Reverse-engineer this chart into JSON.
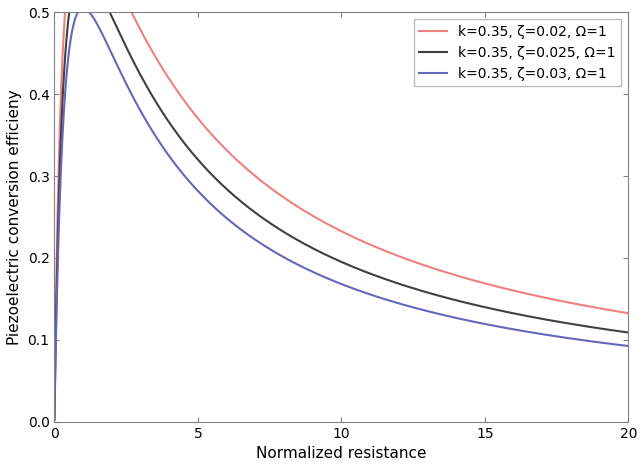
{
  "k": 0.35,
  "zeta_values": [
    0.02,
    0.025,
    0.03
  ],
  "Omega": 1,
  "r_start": 0.001,
  "r_end": 20,
  "r_points": 5000,
  "xlim": [
    0,
    20
  ],
  "ylim": [
    0,
    0.5
  ],
  "xticks": [
    0,
    5,
    10,
    15,
    20
  ],
  "yticks": [
    0,
    0.1,
    0.2,
    0.3,
    0.4,
    0.5
  ],
  "xlabel": "Normalized resistance",
  "ylabel": "Piezoelectric conversion efficieny",
  "colors": [
    "#f08080",
    "#404040",
    "#6666bb"
  ],
  "legend_labels": [
    "k=0.35, ζ=0.02, Ω=1",
    "k=0.35, ζ=0.025, Ω=1",
    "k=0.35, ζ=0.03, Ω=1"
  ],
  "legend_loc": "upper right",
  "linewidth": 1.5,
  "background_color": "#ffffff",
  "label_fontsize": 11,
  "tick_fontsize": 10,
  "legend_fontsize": 10
}
